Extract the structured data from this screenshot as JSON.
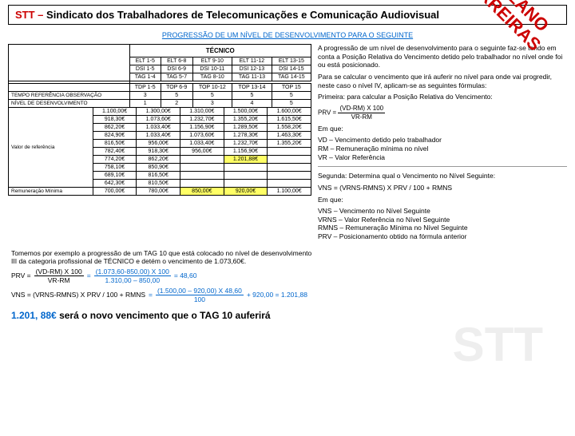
{
  "header": {
    "abbrev": "STT",
    "dash": " – ",
    "rest": "Sindicato dos Trabalhadores de Telecomunicações e Comunicação Audiovisual"
  },
  "subtitle": "PROGRESSÃO DE UM NÍVEL DE DESENVOLVIMENTO PARA O SEGUINTE",
  "watermark": {
    "l1": "NOVO PLANO",
    "l2": "DE CARREIRAS"
  },
  "watermark_bg": "STT",
  "table": {
    "head": "TÉCNICO",
    "r1": [
      "ELT 1-5",
      "ELT 6-8",
      "ELT 9-10",
      "ELT 11-12",
      "ELT 13-15"
    ],
    "r2": [
      "DSI 1-5",
      "DSI 6-9",
      "DSI 10-11",
      "DSI 12-13",
      "DSI 14-15"
    ],
    "r3": [
      "TAG 1-4",
      "TAG 5-7",
      "TAG 8-10",
      "TAG 11-13",
      "TAG 14-15"
    ],
    "r4": [
      "TDP 1-5",
      "TOP 6-9",
      "TOP 10-12",
      "TOP 13-14",
      "TOP 15"
    ],
    "tempo_lbl": "TEMPO REFERÊNCIA OBSERVAÇÃO",
    "tempo": [
      "3",
      "5",
      "5",
      "5",
      "5"
    ],
    "nivel_lbl": "NÍVEL DE DESENVOLVIMENTO",
    "nivel": [
      "1",
      "2",
      "3",
      "4",
      "5"
    ],
    "valref_lbl": "Valor de referência",
    "vrows": [
      [
        "1.100,00€",
        "1.300,00€",
        "1.310,00€",
        "1.500,00€",
        "1.600,00€"
      ],
      [
        "918,30€",
        "1.073,60€",
        "1.232,70€",
        "1.355,20€",
        "1.615,50€"
      ],
      [
        "862,20€",
        "1.033,40€",
        "1.156,90€",
        "1.289,50€",
        "1.558,20€"
      ],
      [
        "824,90€",
        "1.033,40€",
        "1.073,60€",
        "1.278,30€",
        "1.463,30€"
      ],
      [
        "816,50€",
        "956,00€",
        "1.033,40€",
        "1.232,70€",
        "1.355,20€"
      ],
      [
        "782,40€",
        "918,30€",
        "956,00€",
        "1.156,90€",
        ""
      ],
      [
        "774,20€",
        "862,20€",
        "",
        "1.201,88€",
        ""
      ],
      [
        "758,10€",
        "850,90€",
        "",
        "",
        ""
      ],
      [
        "689,10€",
        "816,50€",
        "",
        "",
        ""
      ],
      [
        "642,30€",
        "810,50€",
        "",
        "",
        ""
      ]
    ],
    "remmin_lbl": "Remuneração Mínima",
    "remmin": [
      "700,00€",
      "780,00€",
      "850,00€",
      "920,00€",
      "1.100,00€"
    ]
  },
  "right": {
    "p1": "A progressão de um nível de desenvolvimento para o seguinte faz-se tendo em conta a Posição Relativa do Vencimento detido pelo trabalhador no nível onde foi ou está posicionado.",
    "p2": "Para se calcular o vencimento que irá auferir no nível para onde vai progredir, neste caso o nível IV, aplicam-se as seguintes fórmulas:",
    "p3": "Primeira: para calcular a Posição Relativa do Vencimento:",
    "prv": "PRV =",
    "prv_num": "(VD-RM)  X 100",
    "prv_den": "VR-RM",
    "emque": "Em que:",
    "defs1": "VD – Vencimento detido pelo trabalhador\nRM – Remuneração mínima no nível\nVR – Valor Referência",
    "p4": "Segunda: Determina qual o Vencimento no Nível Seguinte:",
    "vns": "VNS = (VRNS-RMNS) X PRV / 100 + RMNS",
    "emque2": "Em que:",
    "defs2": "VNS – Vencimento no Nível Seguinte\nVRNS – Valor Referência no Nível Seguinte\nRMNS – Remuneração Mínima no Nível Seguinte\nPRV – Posicionamento obtido na fórmula anterior"
  },
  "bottom": {
    "intro": "Tomemos por exemplo a progressão de um TAG 10 que está colocado no nível de desenvolvimento III da categoria profissional de TÉCNICO e detém o vencimento de 1.073,60€.",
    "prv_l": "PRV =",
    "prv_num1": "(VD-RM)  X 100",
    "prv_den1": "VR-RM",
    "prv_num2": "(1.073,60-850,00) X 100",
    "prv_den2": "1.310,00 – 850,00",
    "prv_res": "= 48,60",
    "vns_l": "VNS = (VRNS-RMNS) X PRV / 100 + RMNS",
    "vns_num": "(1.500,00 – 920,00) X 48,60",
    "vns_den": "100",
    "vns_res": "+ 920,00  = 1.201,88",
    "final_a": "1.201, 88€ ",
    "final_b": "será o novo vencimento que o TAG 10 auferirá"
  },
  "colors": {
    "red": "#c00",
    "blue": "#0066cc",
    "hl": "#ffff66"
  }
}
